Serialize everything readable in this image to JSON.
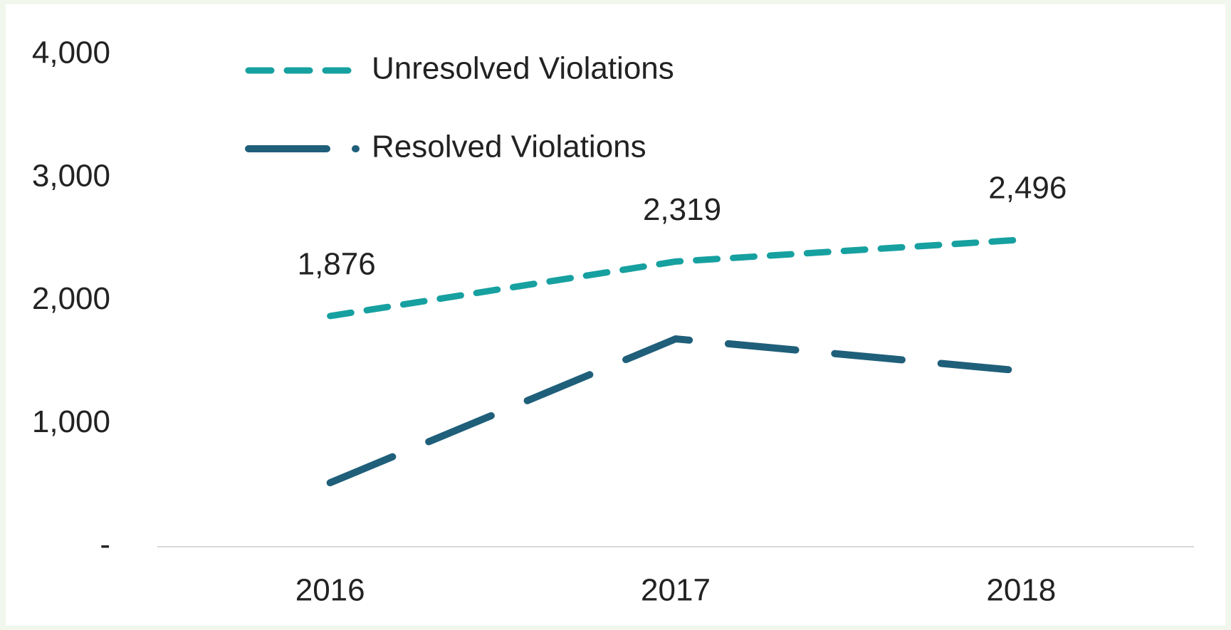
{
  "chart_data": {
    "type": "line",
    "categories": [
      "2016",
      "2017",
      "2018"
    ],
    "series": [
      {
        "name": "Unresolved Violations",
        "color": "#17a0a0",
        "values": [
          1876,
          2319,
          2496
        ],
        "value_labels": [
          "1,876",
          "2,319",
          "2,496"
        ]
      },
      {
        "name": "Resolved Violations",
        "color": "#1f5f7a",
        "values": [
          520,
          1690,
          1430
        ]
      }
    ],
    "ylim": [
      0,
      4000
    ],
    "yticks": [
      {
        "value": 0,
        "label": "-"
      },
      {
        "value": 1000,
        "label": "1,000"
      },
      {
        "value": 2000,
        "label": "2,000"
      },
      {
        "value": 3000,
        "label": "3,000"
      },
      {
        "value": 4000,
        "label": "4,000"
      }
    ],
    "grid": false
  }
}
